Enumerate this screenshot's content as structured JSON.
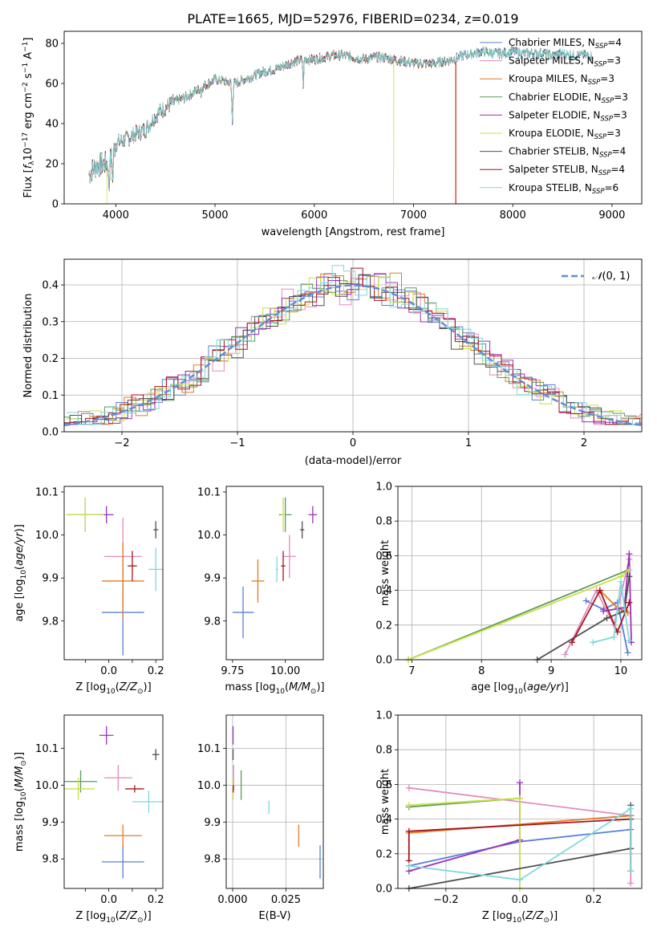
{
  "figure": {
    "title": "PLATE=1665, MJD=52976, FIBERID=0234, z=0.019"
  },
  "colors": {
    "Chabrier MILES": "#5a7fd6",
    "Salpeter MILES": "#e28cc0",
    "Kroupa MILES": "#e37b22",
    "Chabrier ELODIE": "#5a9a5a",
    "Salpeter ELODIE": "#9b30b8",
    "Kroupa ELODIE": "#c8e045",
    "Chabrier STELIB": "#505050",
    "Salpeter STELIB": "#a8141c",
    "Kroupa STELIB": "#7fd8dc"
  },
  "chart_data": [
    {
      "id": "spectrum",
      "type": "line",
      "xlabel": "wavelength [Angstrom, rest frame]",
      "ylabel": "Flux [f_λ10^−17 erg cm^−2 s^−1 A^−1]",
      "xlim": [
        3480,
        9300
      ],
      "ylim": [
        0,
        86
      ],
      "xticks": [
        4000,
        5000,
        6000,
        7000,
        8000,
        9000
      ],
      "yticks": [
        0,
        20,
        40,
        60,
        80
      ],
      "grid": false,
      "legend_position": "top-right",
      "legend": [
        {
          "model": "Chabrier MILES",
          "label": "Chabrier MILES, N",
          "sub": "SSP",
          "eq": "=4"
        },
        {
          "model": "Salpeter MILES",
          "label": "Salpeter MILES, N",
          "sub": "SSP",
          "eq": "=3"
        },
        {
          "model": "Kroupa MILES",
          "label": "Kroupa MILES, N",
          "sub": "SSP",
          "eq": "=3"
        },
        {
          "model": "Chabrier ELODIE",
          "label": "Chabrier ELODIE, N",
          "sub": "SSP",
          "eq": "=3"
        },
        {
          "model": "Salpeter ELODIE",
          "label": "Salpeter ELODIE, N",
          "sub": "SSP",
          "eq": "=3"
        },
        {
          "model": "Kroupa ELODIE",
          "label": "Kroupa ELODIE, N",
          "sub": "SSP",
          "eq": "=3"
        },
        {
          "model": "Chabrier STELIB",
          "label": "Chabrier STELIB, N",
          "sub": "SSP",
          "eq": "=4"
        },
        {
          "model": "Salpeter STELIB",
          "label": "Salpeter STELIB, N",
          "sub": "SSP",
          "eq": "=4"
        },
        {
          "model": "Kroupa STELIB",
          "label": "Kroupa STELIB, N",
          "sub": "SSP",
          "eq": "=6"
        }
      ],
      "continuum": [
        [
          3730,
          15
        ],
        [
          3800,
          19
        ],
        [
          3900,
          20
        ],
        [
          3950,
          22
        ],
        [
          4000,
          30
        ],
        [
          4100,
          32
        ],
        [
          4200,
          35
        ],
        [
          4300,
          37
        ],
        [
          4400,
          44
        ],
        [
          4500,
          48
        ],
        [
          4600,
          51
        ],
        [
          4700,
          53
        ],
        [
          4800,
          56
        ],
        [
          4900,
          59
        ],
        [
          5000,
          62
        ],
        [
          5100,
          61
        ],
        [
          5200,
          60
        ],
        [
          5300,
          62
        ],
        [
          5400,
          64
        ],
        [
          5500,
          66
        ],
        [
          5600,
          67
        ],
        [
          5700,
          69
        ],
        [
          5800,
          71
        ],
        [
          5900,
          72
        ],
        [
          6000,
          72
        ],
        [
          6100,
          73
        ],
        [
          6200,
          74
        ],
        [
          6300,
          74
        ],
        [
          6400,
          73
        ],
        [
          6500,
          72
        ],
        [
          6600,
          73
        ],
        [
          6700,
          73
        ],
        [
          6800,
          72
        ],
        [
          6900,
          71
        ],
        [
          7000,
          70
        ],
        [
          7100,
          70
        ],
        [
          7200,
          70
        ],
        [
          7300,
          71
        ],
        [
          7400,
          72
        ],
        [
          7500,
          74
        ],
        [
          7600,
          75
        ],
        [
          7700,
          76
        ],
        [
          7800,
          75
        ],
        [
          7900,
          75
        ],
        [
          8000,
          76
        ],
        [
          8100,
          75
        ],
        [
          8200,
          75
        ],
        [
          8300,
          75
        ],
        [
          8400,
          74
        ],
        [
          8500,
          75
        ],
        [
          8600,
          74
        ],
        [
          8700,
          74
        ],
        [
          8800,
          74
        ]
      ],
      "dips": [
        {
          "wavelength": 3933,
          "flux": 4
        },
        {
          "wavelength": 3968,
          "flux": 8
        },
        {
          "wavelength": 4861,
          "flux": 52
        },
        {
          "wavelength": 5175,
          "flux": 40
        },
        {
          "wavelength": 5890,
          "flux": 58
        }
      ],
      "dropouts": [
        {
          "model": "Kroupa ELODIE",
          "wavelength": 3910,
          "flux": 0
        },
        {
          "model": "Kroupa ELODIE",
          "wavelength": 6800,
          "flux": 0
        },
        {
          "model": "Kroupa MILES",
          "wavelength": 7420,
          "flux": 0
        },
        {
          "model": "Salpeter STELIB",
          "wavelength": 7430,
          "flux": 0
        }
      ]
    },
    {
      "id": "residuals",
      "type": "histogram",
      "xlabel": "(data-model)/error",
      "ylabel": "Normed distribution",
      "xlim": [
        -2.5,
        2.5
      ],
      "ylim": [
        0,
        0.47
      ],
      "xticks": [
        -2,
        -1,
        0,
        1,
        2
      ],
      "yticks": [
        0.0,
        0.1,
        0.2,
        0.3,
        0.4
      ],
      "grid": true,
      "legend_position": "top-right",
      "reference_curve": {
        "label": "N(0,1)",
        "mean": 0,
        "sigma": 1,
        "color": "#5b8fd6"
      },
      "bin_width": 0.1
    },
    {
      "id": "age_vs_Z",
      "type": "errorbar",
      "xlabel": "Z [log10(Z/Z⊙)]",
      "ylabel": "age  [log10(age/yr)]",
      "xlim": [
        -0.19,
        0.23
      ],
      "ylim": [
        9.71,
        10.113
      ],
      "xticks": [
        -0.1,
        0.0,
        0.1,
        0.2
      ],
      "xticklabels": [
        "",
        "0.0",
        "",
        "0.2"
      ],
      "yticks": [
        9.8,
        9.9,
        10.0,
        10.1
      ],
      "grid": false,
      "points": [
        {
          "model": "Chabrier MILES",
          "x": 0.06,
          "y": 9.82,
          "xerr": 0.09,
          "yerr": 0.1
        },
        {
          "model": "Salpeter MILES",
          "x": 0.06,
          "y": 9.95,
          "xerr": 0.08,
          "yerr": 0.09
        },
        {
          "model": "Kroupa MILES",
          "x": 0.06,
          "y": 9.893,
          "xerr": 0.09,
          "yerr": 0.09
        },
        {
          "model": "Chabrier ELODIE",
          "x": -0.1,
          "y": 10.047,
          "xerr": 0.08,
          "yerr": 0.04
        },
        {
          "model": "Salpeter ELODIE",
          "x": -0.01,
          "y": 10.047,
          "xerr": 0.03,
          "yerr": 0.02
        },
        {
          "model": "Kroupa ELODIE",
          "x": -0.1,
          "y": 10.047,
          "xerr": 0.08,
          "yerr": 0.04
        },
        {
          "model": "Chabrier STELIB",
          "x": 0.2,
          "y": 10.012,
          "xerr": 0.01,
          "yerr": 0.02
        },
        {
          "model": "Salpeter STELIB",
          "x": 0.1,
          "y": 9.928,
          "xerr": 0.02,
          "yerr": 0.035
        },
        {
          "model": "Kroupa STELIB",
          "x": 0.2,
          "y": 9.92,
          "xerr": 0.03,
          "yerr": 0.05
        }
      ]
    },
    {
      "id": "age_vs_mass",
      "type": "errorbar",
      "xlabel": "mass [log10(M/M⊙)]",
      "ylabel": "",
      "xlim": [
        9.72,
        10.18
      ],
      "ylim": [
        9.71,
        10.113
      ],
      "xticks": [
        9.75,
        10.0
      ],
      "xticklabels": [
        "9.75",
        "10.00"
      ],
      "yticks": [
        9.8,
        9.9,
        10.0,
        10.1
      ],
      "grid": false,
      "points": [
        {
          "model": "Chabrier MILES",
          "x": 9.8,
          "y": 9.82,
          "xerr": 0.05,
          "yerr": 0.06
        },
        {
          "model": "Salpeter MILES",
          "x": 10.02,
          "y": 9.95,
          "xerr": 0.03,
          "yerr": 0.05
        },
        {
          "model": "Kroupa MILES",
          "x": 9.87,
          "y": 9.893,
          "xerr": 0.03,
          "yerr": 0.05
        },
        {
          "model": "Chabrier ELODIE",
          "x": 10.0,
          "y": 10.047,
          "xerr": 0.03,
          "yerr": 0.04
        },
        {
          "model": "Salpeter ELODIE",
          "x": 10.13,
          "y": 10.047,
          "xerr": 0.02,
          "yerr": 0.02
        },
        {
          "model": "Kroupa ELODIE",
          "x": 9.99,
          "y": 10.047,
          "xerr": 0.01,
          "yerr": 0.04
        },
        {
          "model": "Chabrier STELIB",
          "x": 10.08,
          "y": 10.012,
          "xerr": 0.01,
          "yerr": 0.02
        },
        {
          "model": "Salpeter STELIB",
          "x": 9.99,
          "y": 9.928,
          "xerr": 0.01,
          "yerr": 0.035
        },
        {
          "model": "Kroupa STELIB",
          "x": 9.96,
          "y": 9.92,
          "xerr": 0.005,
          "yerr": 0.03
        }
      ]
    },
    {
      "id": "weight_vs_age",
      "type": "line",
      "xlabel": "age  [log10(age/yr)]",
      "ylabel": "mass weight",
      "xlim": [
        6.8,
        10.3
      ],
      "ylim": [
        0,
        1
      ],
      "xticks": [
        7,
        8,
        9,
        10
      ],
      "yticks": [
        0.0,
        0.2,
        0.4,
        0.6,
        0.8,
        1.0
      ],
      "grid": true,
      "series": [
        {
          "model": "Chabrier MILES",
          "x": [
            9.5,
            9.75,
            9.95,
            10.1
          ],
          "y": [
            0.34,
            0.29,
            0.33,
            0.04
          ]
        },
        {
          "model": "Salpeter MILES",
          "x": [
            9.2,
            9.65,
            9.9,
            10.12
          ],
          "y": [
            0.03,
            0.4,
            0.2,
            0.58
          ]
        },
        {
          "model": "Kroupa MILES",
          "x": [
            9.7,
            9.95,
            10.1
          ],
          "y": [
            0.4,
            0.3,
            0.27
          ]
        },
        {
          "model": "Chabrier ELODIE",
          "x": [
            6.95,
            10.12
          ],
          "y": [
            0.0,
            0.52
          ]
        },
        {
          "model": "Salpeter ELODIE",
          "x": [
            9.75,
            10.05,
            10.12,
            10.15
          ],
          "y": [
            0.28,
            0.3,
            0.61,
            0.1
          ]
        },
        {
          "model": "Kroupa ELODIE",
          "x": [
            6.95,
            10.0,
            10.12
          ],
          "y": [
            0.0,
            0.48,
            0.52
          ]
        },
        {
          "model": "Chabrier STELIB",
          "x": [
            8.8,
            9.8,
            10.05,
            10.12
          ],
          "y": [
            0.0,
            0.24,
            0.28,
            0.48
          ]
        },
        {
          "model": "Salpeter STELIB",
          "x": [
            9.3,
            9.7,
            9.95,
            10.12
          ],
          "y": [
            0.1,
            0.4,
            0.16,
            0.33
          ]
        },
        {
          "model": "Kroupa STELIB",
          "x": [
            9.6,
            9.9,
            10.0,
            10.12
          ],
          "y": [
            0.1,
            0.13,
            0.45,
            0.11
          ]
        }
      ]
    },
    {
      "id": "mass_vs_Z",
      "type": "errorbar",
      "xlabel": "Z [log10(Z/Z⊙)]",
      "ylabel": "mass [log10(M/M⊙)]",
      "xlim": [
        -0.19,
        0.23
      ],
      "ylim": [
        9.72,
        10.19
      ],
      "xticks": [
        -0.1,
        0.0,
        0.1,
        0.2
      ],
      "xticklabels": [
        "",
        "0.0",
        "",
        "0.2"
      ],
      "yticks": [
        9.8,
        9.9,
        10.0,
        10.1
      ],
      "grid": false,
      "points": [
        {
          "model": "Chabrier MILES",
          "x": 0.06,
          "y": 9.792,
          "xerr": 0.09,
          "yerr": 0.045
        },
        {
          "model": "Salpeter MILES",
          "x": 0.04,
          "y": 10.02,
          "xerr": 0.06,
          "yerr": 0.035
        },
        {
          "model": "Kroupa MILES",
          "x": 0.06,
          "y": 9.863,
          "xerr": 0.08,
          "yerr": 0.03
        },
        {
          "model": "Chabrier ELODIE",
          "x": -0.12,
          "y": 10.01,
          "xerr": 0.07,
          "yerr": 0.03
        },
        {
          "model": "Salpeter ELODIE",
          "x": -0.01,
          "y": 10.135,
          "xerr": 0.03,
          "yerr": 0.025
        },
        {
          "model": "Kroupa ELODIE",
          "x": -0.13,
          "y": 9.99,
          "xerr": 0.07,
          "yerr": 0.03
        },
        {
          "model": "Chabrier STELIB",
          "x": 0.2,
          "y": 10.083,
          "xerr": 0.015,
          "yerr": 0.015
        },
        {
          "model": "Salpeter STELIB",
          "x": 0.11,
          "y": 9.99,
          "xerr": 0.04,
          "yerr": 0.01
        },
        {
          "model": "Kroupa STELIB",
          "x": 0.17,
          "y": 9.955,
          "xerr": 0.07,
          "yerr": 0.03
        }
      ]
    },
    {
      "id": "mass_vs_ebv",
      "type": "errorbar",
      "xlabel": "E(B-V)",
      "ylabel": "",
      "xlim": [
        -0.003,
        0.0425
      ],
      "ylim": [
        9.72,
        10.19
      ],
      "xticks": [
        0.0,
        0.025
      ],
      "xticklabels": [
        "0.000",
        "0.025"
      ],
      "yticks": [
        9.8,
        9.9,
        10.0,
        10.1
      ],
      "grid": true,
      "points": [
        {
          "model": "Chabrier MILES",
          "x": 0.041,
          "y": 9.792,
          "xerr": 0.0,
          "yerr": 0.045
        },
        {
          "model": "Salpeter MILES",
          "x": 0.0005,
          "y": 10.02,
          "xerr": 0.0,
          "yerr": 0.035
        },
        {
          "model": "Kroupa MILES",
          "x": 0.031,
          "y": 9.863,
          "xerr": 0.0,
          "yerr": 0.03
        },
        {
          "model": "Chabrier ELODIE",
          "x": 0.004,
          "y": 10.0,
          "xerr": 0.0,
          "yerr": 0.04
        },
        {
          "model": "Salpeter ELODIE",
          "x": 0.0002,
          "y": 10.135,
          "xerr": 0.0,
          "yerr": 0.025
        },
        {
          "model": "Kroupa ELODIE",
          "x": 0.0002,
          "y": 9.99,
          "xerr": 0.0,
          "yerr": 0.03
        },
        {
          "model": "Chabrier STELIB",
          "x": 0.0002,
          "y": 10.083,
          "xerr": 0.0,
          "yerr": 0.015
        },
        {
          "model": "Salpeter STELIB",
          "x": 0.0003,
          "y": 9.99,
          "xerr": 0.0,
          "yerr": 0.01
        },
        {
          "model": "Kroupa STELIB",
          "x": 0.017,
          "y": 9.94,
          "xerr": 0.0,
          "yerr": 0.018
        }
      ]
    },
    {
      "id": "weight_vs_Z",
      "type": "line",
      "xlabel": "Z [log10(Z/Z⊙)]",
      "ylabel": "mass weight",
      "xlim": [
        -0.33,
        0.33
      ],
      "ylim": [
        0,
        1
      ],
      "xticks": [
        -0.2,
        0.0,
        0.2
      ],
      "xticklabels": [
        "−0.2",
        "0.0",
        "0.2"
      ],
      "yticks": [
        0.0,
        0.2,
        0.4,
        0.6,
        0.8,
        1.0
      ],
      "grid": true,
      "series": [
        {
          "model": "Chabrier MILES",
          "x": [
            -0.3,
            0.0,
            0.3,
            0.3
          ],
          "y": [
            0.13,
            0.27,
            0.34,
            0.42
          ]
        },
        {
          "model": "Salpeter MILES",
          "x": [
            -0.3,
            0.3,
            0.3
          ],
          "y": [
            0.58,
            0.42,
            0.03
          ]
        },
        {
          "model": "Kroupa MILES",
          "x": [
            -0.3,
            0.3
          ],
          "y": [
            0.32,
            0.42
          ]
        },
        {
          "model": "Chabrier ELODIE",
          "x": [
            -0.3,
            0.0
          ],
          "y": [
            0.47,
            0.52
          ]
        },
        {
          "model": "Salpeter ELODIE",
          "x": [
            -0.3,
            0.0,
            0.0
          ],
          "y": [
            0.1,
            0.28,
            0.61
          ]
        },
        {
          "model": "Kroupa ELODIE",
          "x": [
            -0.3,
            0.0,
            0.0
          ],
          "y": [
            0.48,
            0.52,
            0.0
          ]
        },
        {
          "model": "Chabrier STELIB",
          "x": [
            -0.3,
            0.3,
            0.3
          ],
          "y": [
            0.0,
            0.23,
            0.48
          ]
        },
        {
          "model": "Salpeter STELIB",
          "x": [
            -0.3,
            -0.3,
            0.3,
            0.3
          ],
          "y": [
            0.16,
            0.33,
            0.4,
            0.1
          ]
        },
        {
          "model": "Kroupa STELIB",
          "x": [
            -0.3,
            0.0,
            0.3,
            0.3
          ],
          "y": [
            0.13,
            0.05,
            0.46,
            0.1
          ]
        }
      ]
    }
  ]
}
